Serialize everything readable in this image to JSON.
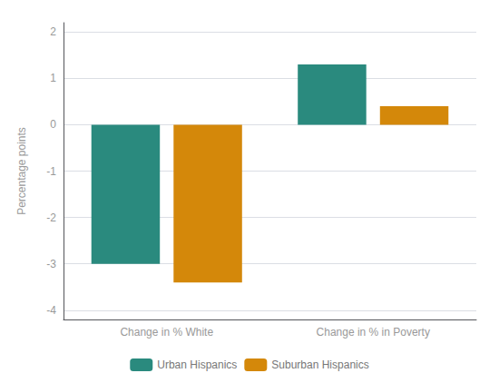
{
  "chart_data": {
    "type": "bar",
    "categories": [
      "Change in % White",
      "Change in % in Poverty"
    ],
    "series": [
      {
        "name": "Urban Hispanics",
        "color": "#2a8a7e",
        "values": [
          -3.0,
          1.3
        ]
      },
      {
        "name": "Suburban Hispanics",
        "color": "#d4880a",
        "values": [
          -3.4,
          0.4
        ]
      }
    ],
    "ylabel": "Percentage points",
    "ylim": [
      -4.2,
      2.2
    ],
    "yticks": [
      -4,
      -3,
      -2,
      -1,
      0,
      1,
      2
    ],
    "grid": true,
    "legend": "bottom"
  }
}
